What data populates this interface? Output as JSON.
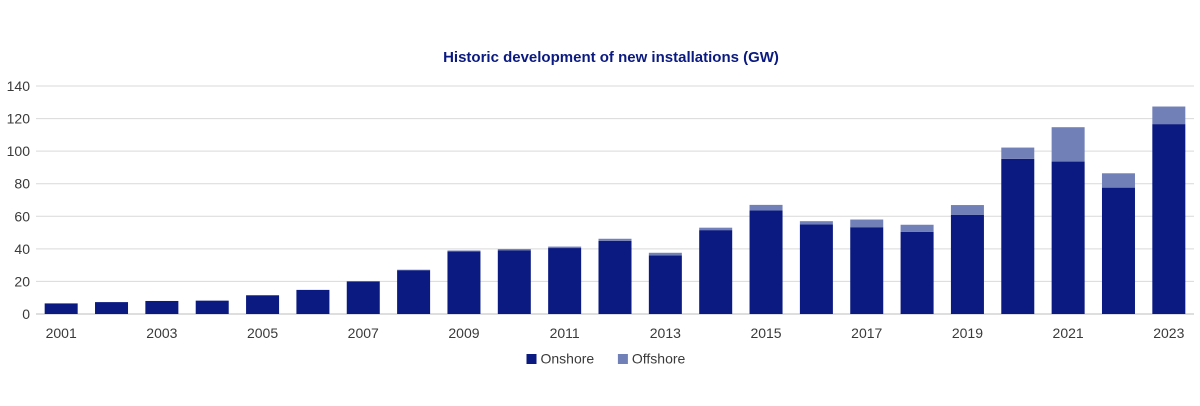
{
  "chart_data": {
    "type": "bar",
    "stacked": true,
    "title": "Historic development of new installations (GW)",
    "xlabel": "",
    "ylabel": "",
    "ylim": [
      0,
      140
    ],
    "yticks": [
      0,
      20,
      40,
      60,
      80,
      100,
      120,
      140
    ],
    "grid": true,
    "legend_position": "bottom",
    "categories": [
      "2001",
      "2002",
      "2003",
      "2004",
      "2005",
      "2006",
      "2007",
      "2008",
      "2009",
      "2010",
      "2011",
      "2012",
      "2013",
      "2014",
      "2015",
      "2016",
      "2017",
      "2018",
      "2019",
      "2020",
      "2021",
      "2022",
      "2023"
    ],
    "x_tick_labels": [
      "2001",
      "",
      "2003",
      "",
      "2005",
      "",
      "2007",
      "",
      "2009",
      "",
      "2011",
      "",
      "2013",
      "",
      "2015",
      "",
      "2017",
      "",
      "2019",
      "",
      "2021",
      "",
      "2023"
    ],
    "series": [
      {
        "name": "Onshore",
        "color": "#0a1a80",
        "values": [
          6.5,
          7.3,
          8.0,
          8.2,
          11.5,
          14.8,
          20.0,
          26.9,
          38.5,
          39.0,
          40.5,
          44.9,
          36.0,
          51.5,
          63.6,
          55.0,
          53.3,
          50.5,
          60.8,
          95.3,
          93.6,
          77.6,
          116.6
        ]
      },
      {
        "name": "Offshore",
        "color": "#7280b8",
        "values": [
          0.0,
          0.0,
          0.0,
          0.0,
          0.0,
          0.0,
          0.1,
          0.3,
          0.5,
          0.9,
          0.9,
          1.3,
          1.6,
          1.5,
          3.4,
          2.0,
          4.7,
          4.3,
          6.1,
          6.9,
          21.1,
          8.8,
          10.8
        ]
      }
    ]
  }
}
